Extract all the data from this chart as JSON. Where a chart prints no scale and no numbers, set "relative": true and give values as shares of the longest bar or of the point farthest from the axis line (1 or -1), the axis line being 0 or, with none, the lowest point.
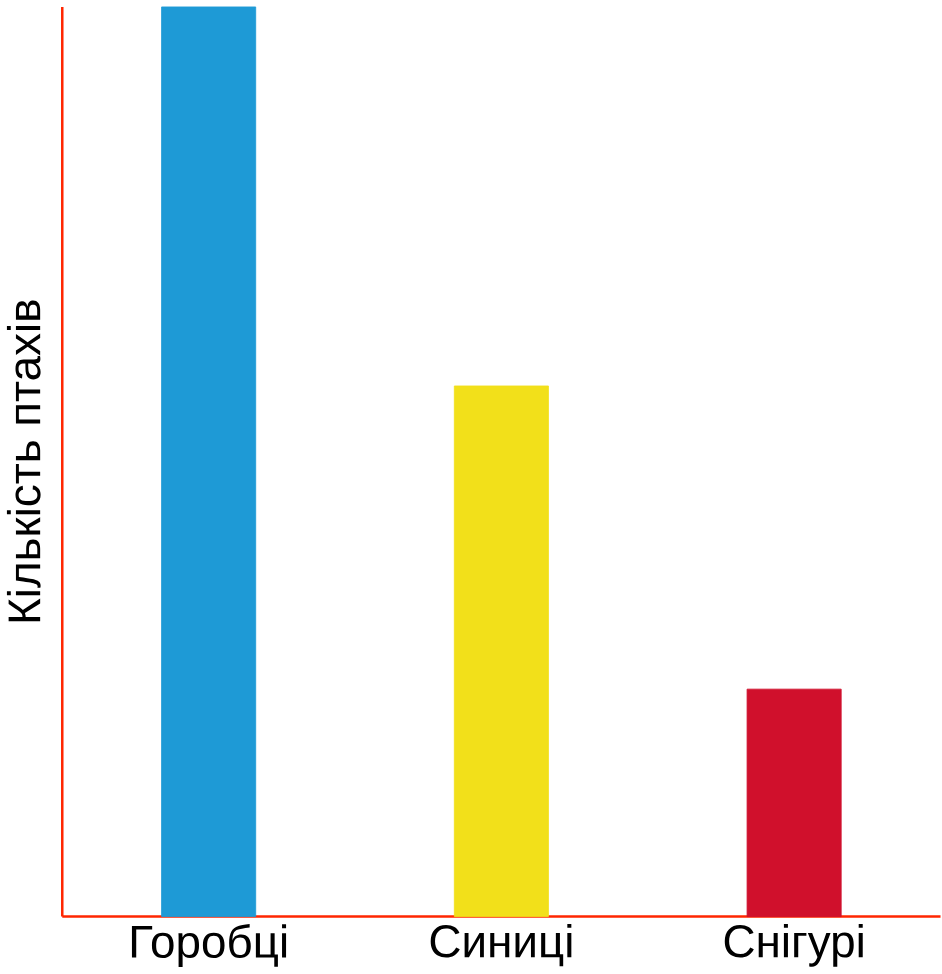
{
  "chart_data": {
    "type": "bar",
    "ylabel": "Кількість птахів",
    "categories": [
      "Горобці",
      "Синиці",
      "Снігурі"
    ],
    "values": [
      1,
      0.5833,
      0.25
    ],
    "colors": [
      "#1e9ad6",
      "#f2e01a",
      "#d0102c"
    ],
    "relative": true
  }
}
